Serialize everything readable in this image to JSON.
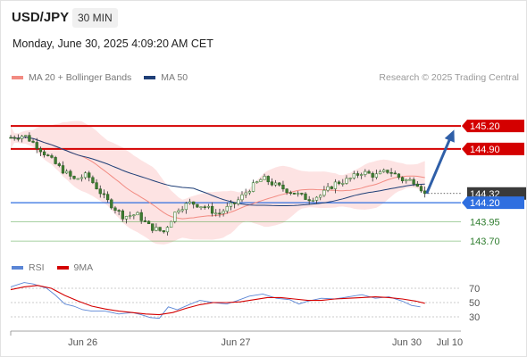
{
  "header": {
    "symbol": "USD/JPY",
    "timeframe": "30 MIN",
    "datetime": "Monday, June 30, 2025 4:09:20 AM CET"
  },
  "legend": {
    "items": [
      {
        "label": "MA 20 + Bollinger Bands",
        "color": "#f28b82"
      },
      {
        "label": "MA 50",
        "color": "#1f3f77"
      }
    ],
    "credit": "Research © 2025 Trading Central"
  },
  "rsi_legend": {
    "items": [
      {
        "label": "RSI",
        "color": "#5b86d6"
      },
      {
        "label": "9MA",
        "color": "#d40000"
      }
    ]
  },
  "chart_data": [
    {
      "type": "candlestick",
      "y_range": [
        143.55,
        145.55
      ],
      "x_range": [
        0,
        100
      ],
      "x_ticks": [
        {
          "label": "Jun 26",
          "x": 16
        },
        {
          "label": "Jun 27",
          "x": 50
        },
        {
          "label": "Jun 30",
          "x": 88
        },
        {
          "label": "Jul 10",
          "x": 97.5
        }
      ],
      "levels": [
        {
          "label": "145.20",
          "value": 145.2,
          "color": "#d40000",
          "kind": "resistance"
        },
        {
          "label": "144.90",
          "value": 144.9,
          "color": "#d40000",
          "kind": "resistance"
        },
        {
          "label": "144.32",
          "value": 144.32,
          "color": "#1a1a1a",
          "kind": "last"
        },
        {
          "label": "144.20",
          "value": 144.2,
          "color": "#2f6fe0",
          "kind": "pivot"
        },
        {
          "label": "143.95",
          "value": 143.95,
          "color": "#59a84f",
          "kind": "support"
        },
        {
          "label": "143.70",
          "value": 143.7,
          "color": "#59a84f",
          "kind": "support"
        }
      ],
      "price_path": [
        [
          0,
          145.05
        ],
        [
          3,
          145.08
        ],
        [
          6,
          144.93
        ],
        [
          10,
          144.7
        ],
        [
          14,
          144.5
        ],
        [
          17,
          144.56
        ],
        [
          21,
          144.25
        ],
        [
          25,
          144.02
        ],
        [
          28,
          144.05
        ],
        [
          31,
          143.88
        ],
        [
          34,
          143.82
        ],
        [
          37,
          144.12
        ],
        [
          40,
          144.2
        ],
        [
          43,
          144.15
        ],
        [
          46,
          144.05
        ],
        [
          50,
          144.2
        ],
        [
          53,
          144.38
        ],
        [
          56,
          144.52
        ],
        [
          59,
          144.42
        ],
        [
          62,
          144.35
        ],
        [
          66,
          144.25
        ],
        [
          69,
          144.3
        ],
        [
          72,
          144.45
        ],
        [
          75,
          144.5
        ],
        [
          78,
          144.6
        ],
        [
          81,
          144.55
        ],
        [
          84,
          144.62
        ],
        [
          87,
          144.5
        ],
        [
          90,
          144.48
        ],
        [
          92,
          144.32
        ]
      ],
      "projection": {
        "from": [
          92,
          144.32
        ],
        "to": [
          98.5,
          145.15
        ]
      }
    },
    {
      "type": "line",
      "title": "RSI",
      "y_range": [
        20,
        85
      ],
      "y_ticks": [
        70,
        50,
        30
      ],
      "series": [
        {
          "name": "RSI",
          "color": "#5b86d6",
          "values": [
            [
              0,
              72
            ],
            [
              3,
              78
            ],
            [
              5,
              76
            ],
            [
              8,
              70
            ],
            [
              10,
              60
            ],
            [
              12,
              48
            ],
            [
              14,
              45
            ],
            [
              16,
              40
            ],
            [
              18,
              38
            ],
            [
              21,
              38
            ],
            [
              24,
              34
            ],
            [
              27,
              36
            ],
            [
              29,
              33
            ],
            [
              31,
              29
            ],
            [
              33,
              28
            ],
            [
              35,
              44
            ],
            [
              37,
              40
            ],
            [
              40,
              48
            ],
            [
              42,
              53
            ],
            [
              45,
              50
            ],
            [
              48,
              48
            ],
            [
              50,
              52
            ],
            [
              53,
              59
            ],
            [
              56,
              62
            ],
            [
              59,
              56
            ],
            [
              62,
              54
            ],
            [
              64,
              48
            ],
            [
              66,
              52
            ],
            [
              69,
              56
            ],
            [
              72,
              55
            ],
            [
              75,
              58
            ],
            [
              78,
              61
            ],
            [
              81,
              56
            ],
            [
              84,
              58
            ],
            [
              87,
              52
            ],
            [
              89,
              46
            ],
            [
              91,
              44
            ]
          ]
        },
        {
          "name": "9MA",
          "color": "#d40000",
          "values": [
            [
              0,
              68
            ],
            [
              3,
              72
            ],
            [
              6,
              74
            ],
            [
              9,
              70
            ],
            [
              12,
              60
            ],
            [
              15,
              52
            ],
            [
              18,
              45
            ],
            [
              21,
              41
            ],
            [
              24,
              38
            ],
            [
              27,
              36
            ],
            [
              30,
              34
            ],
            [
              33,
              33
            ],
            [
              36,
              36
            ],
            [
              39,
              42
            ],
            [
              42,
              47
            ],
            [
              45,
              50
            ],
            [
              48,
              50
            ],
            [
              51,
              51
            ],
            [
              54,
              54
            ],
            [
              57,
              57
            ],
            [
              60,
              57
            ],
            [
              63,
              55
            ],
            [
              66,
              53
            ],
            [
              69,
              53
            ],
            [
              72,
              55
            ],
            [
              75,
              56
            ],
            [
              78,
              57
            ],
            [
              81,
              58
            ],
            [
              84,
              57
            ],
            [
              87,
              55
            ],
            [
              90,
              52
            ],
            [
              92,
              49
            ]
          ]
        }
      ]
    }
  ]
}
